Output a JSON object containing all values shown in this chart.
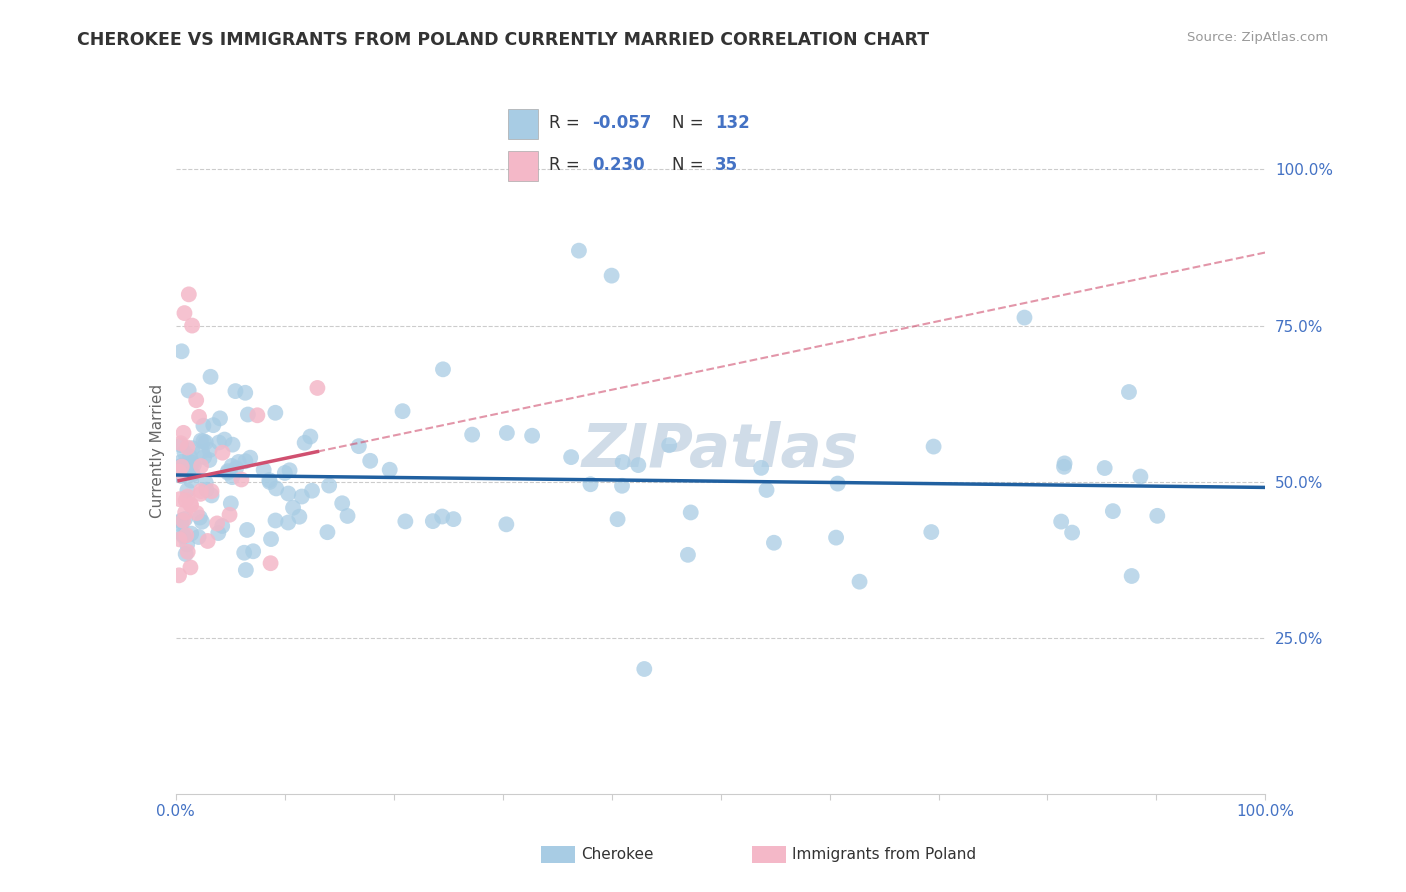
{
  "title": "CHEROKEE VS IMMIGRANTS FROM POLAND CURRENTLY MARRIED CORRELATION CHART",
  "source": "Source: ZipAtlas.com",
  "ylabel": "Currently Married",
  "r1": -0.057,
  "n1": 132,
  "r2": 0.23,
  "n2": 35,
  "color_blue": "#a8cce4",
  "color_pink": "#f4b8c8",
  "color_blue_line": "#2060a0",
  "color_pink_line": "#d05070",
  "legend_text_color": "#4472c4",
  "legend_label_color": "#333333",
  "axis_tick_color": "#4472c4",
  "title_color": "#333333",
  "source_color": "#999999",
  "watermark": "ZIPatlas",
  "watermark_color": "#d0dce8",
  "legend_label1": "Cherokee",
  "legend_label2": "Immigrants from Poland",
  "grid_color": "#cccccc"
}
